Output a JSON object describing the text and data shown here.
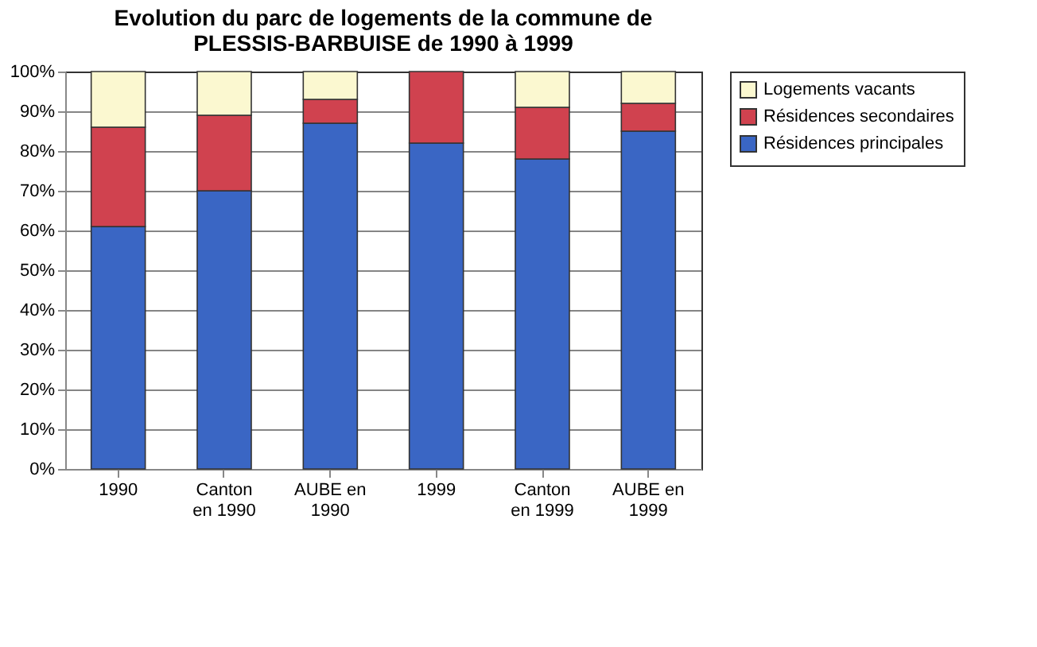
{
  "chart_data": {
    "type": "bar",
    "stacked": true,
    "title": "Evolution du parc de logements de la commune de PLESSIS-BARBUISE de 1990 à 1999",
    "categories": [
      "1990",
      "Canton en 1990",
      "AUBE en 1990",
      "1999",
      "Canton en 1999",
      "AUBE en 1999"
    ],
    "series": [
      {
        "name": "Résidences principales",
        "color": "#3a66c4",
        "values": [
          61,
          70,
          87,
          82,
          78,
          85
        ]
      },
      {
        "name": "Résidences secondaires",
        "color": "#d0424f",
        "values": [
          25,
          19,
          6,
          18,
          13,
          7
        ]
      },
      {
        "name": "Logements vacants",
        "color": "#fbf8d0",
        "values": [
          14,
          11,
          7,
          null,
          9,
          8
        ]
      }
    ],
    "ylim": [
      0,
      100
    ],
    "yticks": [
      {
        "value": 0,
        "label": "0%"
      },
      {
        "value": 10,
        "label": "10%"
      },
      {
        "value": 20,
        "label": "20%"
      },
      {
        "value": 30,
        "label": "30%"
      },
      {
        "value": 40,
        "label": "40%"
      },
      {
        "value": 50,
        "label": "50%"
      },
      {
        "value": 60,
        "label": "60%"
      },
      {
        "value": 70,
        "label": "70%"
      },
      {
        "value": 80,
        "label": "80%"
      },
      {
        "value": 90,
        "label": "90%"
      },
      {
        "value": 100,
        "label": "100%"
      }
    ],
    "grid": "y",
    "legend": "right"
  }
}
